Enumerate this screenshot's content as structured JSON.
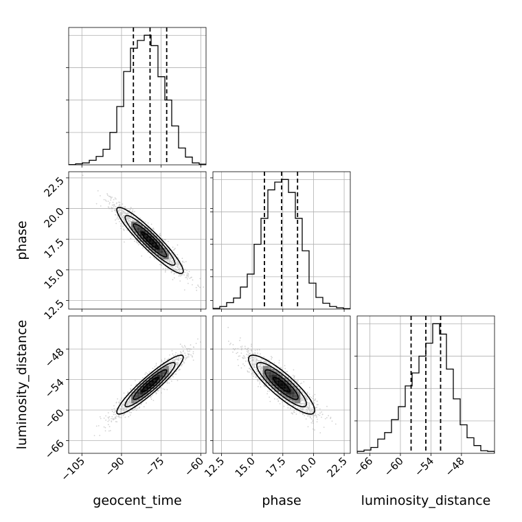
{
  "chart_data": {
    "type": "corner",
    "parameters": [
      "geocent_time",
      "phase",
      "luminosity_distance"
    ],
    "ranges": {
      "geocent_time": [
        -110,
        -58
      ],
      "phase": [
        11.8,
        23.0
      ],
      "luminosity_distance": [
        -68.5,
        -41.5
      ]
    },
    "ticks": {
      "geocent_time": [
        -105,
        -90,
        -75,
        -60
      ],
      "phase": [
        12.5,
        15.0,
        17.5,
        20.0,
        22.5
      ],
      "luminosity_distance": [
        -66,
        -60,
        -54,
        -48
      ]
    },
    "tick_labels": {
      "geocent_time": [
        "−105",
        "−90",
        "−75",
        "−60"
      ],
      "phase": [
        "12.5",
        "15.0",
        "17.5",
        "20.0",
        "22.5"
      ],
      "luminosity_distance": [
        "−66",
        "−60",
        "−54",
        "−48"
      ]
    },
    "quantiles": {
      "geocent_time": [
        -85.5,
        -79.2,
        -72.9
      ],
      "phase": [
        16.0,
        17.4,
        18.7
      ],
      "luminosity_distance": [
        -57.9,
        -55.0,
        -52.1
      ]
    },
    "histograms": {
      "geocent_time": {
        "edges": [
          -110,
          -107.4,
          -104.8,
          -102.2,
          -99.6,
          -97,
          -94.4,
          -91.8,
          -89.2,
          -86.6,
          -84,
          -81.4,
          -78.8,
          -76.2,
          -73.6,
          -71,
          -68.4,
          -65.8,
          -63.2,
          -60.6,
          -58
        ],
        "counts": [
          0.2,
          0.8,
          1.5,
          3.5,
          6.5,
          12,
          25,
          45,
          72,
          90,
          96,
          100,
          92,
          68,
          50,
          30,
          13,
          6,
          1.5,
          0.5
        ]
      },
      "phase": {
        "edges": [
          11.8,
          12.36,
          12.92,
          13.48,
          14.04,
          14.6,
          15.16,
          15.72,
          16.28,
          16.84,
          17.4,
          17.96,
          18.52,
          19.08,
          19.64,
          20.2,
          20.76,
          21.32,
          21.88,
          22.44,
          23.0
        ],
        "counts": [
          0.5,
          2,
          5,
          8.5,
          17,
          27,
          50,
          70,
          92,
          98,
          100,
          90,
          70,
          45,
          20,
          9,
          4.5,
          2,
          1,
          0.3
        ]
      },
      "luminosity_distance": {
        "edges": [
          -68.5,
          -67.15,
          -65.8,
          -64.45,
          -63.1,
          -61.75,
          -60.4,
          -59.05,
          -57.7,
          -56.35,
          -55.0,
          -53.65,
          -52.3,
          -50.95,
          -49.6,
          -48.25,
          -46.9,
          -45.55,
          -44.2,
          -42.85,
          -41.5
        ],
        "counts": [
          1.5,
          2.5,
          4.5,
          11,
          16,
          26,
          36,
          52,
          62,
          75,
          85,
          100,
          92,
          65,
          42,
          22,
          12,
          6,
          2,
          1.5
        ]
      }
    },
    "pairs": [
      {
        "x": "geocent_time",
        "y": "phase",
        "mean": [
          -79.2,
          17.4
        ],
        "sd": [
          6.3,
          1.35
        ],
        "corr": -0.93
      },
      {
        "x": "geocent_time",
        "y": "luminosity_distance",
        "mean": [
          -79.2,
          -55.0
        ],
        "sd": [
          6.3,
          2.9
        ],
        "corr": 0.93
      },
      {
        "x": "phase",
        "y": "luminosity_distance",
        "mean": [
          17.4,
          -55.0
        ],
        "sd": [
          1.35,
          2.9
        ],
        "corr": -0.87
      }
    ],
    "contour_levels": [
      0.118,
      0.393,
      0.675,
      0.864
    ],
    "grid": true
  }
}
